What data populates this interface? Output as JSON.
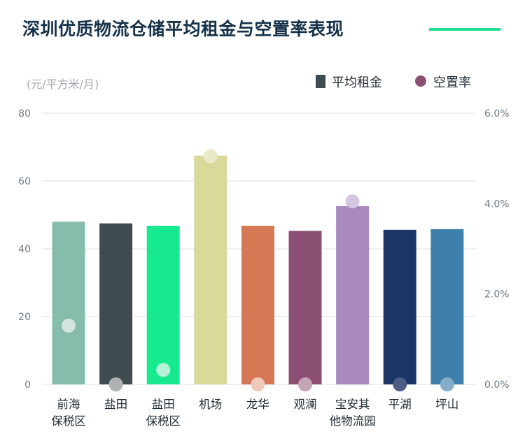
{
  "title": "深圳优质物流仓储平均租金与空置率表现",
  "colors": {
    "title": "#15324a",
    "title_rule": "#1ce08d",
    "grid": "#dcdfe3",
    "tick_text": "#6d7a86",
    "legend_rent": "#3f4c4f",
    "legend_vacancy": "#8b4f73"
  },
  "chart_data": {
    "type": "bar",
    "title": "深圳优质物流仓储平均租金与空置率表现",
    "ylabel": "(元/平方米/月)",
    "categories": [
      "前海\n保税区",
      "盐田",
      "盐田\n保税区",
      "机场",
      "龙华",
      "观澜",
      "宝安其\n他物流园",
      "平湖",
      "坪山"
    ],
    "series": [
      {
        "name": "平均租金",
        "type": "bar",
        "axis": "left",
        "values": [
          48,
          47.5,
          46.8,
          67.5,
          46.8,
          45.3,
          52.6,
          45.6,
          45.8
        ],
        "colors": [
          "#86bcab",
          "#3f4c4f",
          "#17e98e",
          "#d9d99a",
          "#d67856",
          "#8b4f73",
          "#a88ac1",
          "#1d3566",
          "#3e7fab"
        ]
      },
      {
        "name": "空置率",
        "type": "scatter",
        "axis": "right",
        "values": [
          1.3,
          0.0,
          0.32,
          5.05,
          0.0,
          0.0,
          4.05,
          0.0,
          0.0
        ],
        "colors": [
          "#d3e4de",
          "#aeb2b3",
          "#b5f4d8",
          "#eaeaca",
          "#f0c9bb",
          "#c4a5b8",
          "#d4c6e1",
          "#4b5d85",
          "#82aec9"
        ]
      }
    ],
    "y_left": {
      "ylim": [
        0,
        80
      ],
      "ticks": [
        "0",
        "20",
        "40",
        "60",
        "80"
      ]
    },
    "y_right": {
      "ylim": [
        0,
        6
      ],
      "ticks": [
        "0.0%",
        "2.0%",
        "4.0%",
        "6.0%"
      ]
    },
    "legend": {
      "position": "top-right",
      "items": [
        "平均租金",
        "空置率"
      ]
    },
    "grid": true
  }
}
